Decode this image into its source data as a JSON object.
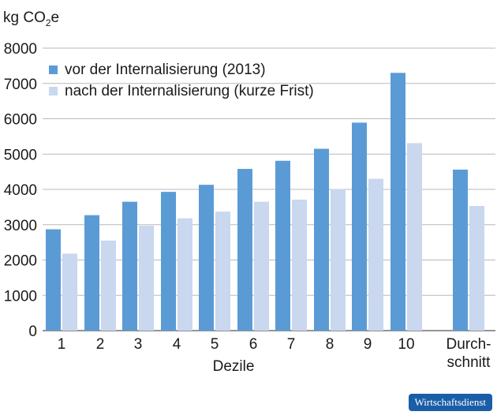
{
  "chart_data": {
    "type": "bar",
    "y_unit": {
      "text": "kg CO",
      "subscript": "2",
      "suffix": "e"
    },
    "xlabel": "Dezile",
    "ylim": [
      0,
      8000
    ],
    "yticks": [
      0,
      1000,
      2000,
      3000,
      4000,
      5000,
      6000,
      7000,
      8000
    ],
    "grid": true,
    "legend_position": "top-left",
    "categories": [
      "1",
      "2",
      "3",
      "4",
      "5",
      "6",
      "7",
      "8",
      "9",
      "10",
      "Durch-\nschnitt"
    ],
    "series": [
      {
        "name": "vor der Internalisierung (2013)",
        "color": "#5b9bd5",
        "values": [
          2870,
          3270,
          3650,
          3930,
          4130,
          4580,
          4810,
          5150,
          5890,
          7300,
          4560
        ]
      },
      {
        "name": "nach der Internalisierung (kurze Frist)",
        "color": "#c9d7ef",
        "values": [
          2180,
          2550,
          2970,
          3180,
          3370,
          3650,
          3710,
          4010,
          4300,
          5310,
          3530
        ]
      }
    ]
  },
  "footer": {
    "source_label": "Wirtschaftsdienst"
  }
}
